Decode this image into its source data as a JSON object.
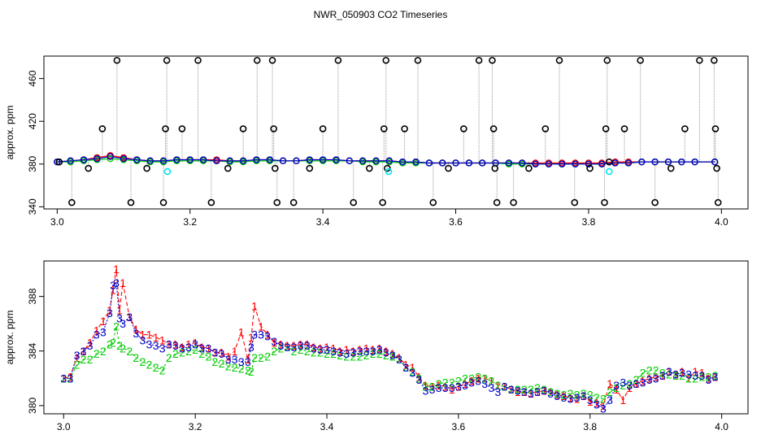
{
  "figure_title": "NWR_050903  CO2 Timeseries",
  "colors": {
    "series1": "#ff0000",
    "series2": "#00cc00",
    "series3": "#0000cc",
    "flagged_outer": "#000000",
    "flagged_line": "#999999",
    "rejected": "#00e5ee",
    "frame": "#000000"
  },
  "chart_data": [
    {
      "type": "line",
      "title": "",
      "xlabel": "",
      "ylabel": "approx. ppm",
      "xlim": [
        2.98,
        4.04
      ],
      "ylim": [
        338,
        481
      ],
      "xticks": [
        3.0,
        3.2,
        3.4,
        3.6,
        3.8,
        4.0
      ],
      "yticks": [
        340,
        380,
        420,
        460
      ],
      "grid": false,
      "legend": "none",
      "x": [
        3.0,
        3.02,
        3.04,
        3.06,
        3.08,
        3.1,
        3.12,
        3.14,
        3.16,
        3.18,
        3.2,
        3.22,
        3.24,
        3.26,
        3.28,
        3.3,
        3.32,
        3.34,
        3.36,
        3.38,
        3.4,
        3.42,
        3.44,
        3.46,
        3.48,
        3.5,
        3.52,
        3.54,
        3.56,
        3.58,
        3.6,
        3.62,
        3.64,
        3.66,
        3.68,
        3.7,
        3.72,
        3.74,
        3.76,
        3.78,
        3.8,
        3.82,
        3.84,
        3.86,
        3.88,
        3.9,
        3.92,
        3.94,
        3.96,
        3.99
      ],
      "series": [
        {
          "values": [
            382,
            383,
            384,
            386,
            388,
            386,
            384,
            383,
            383,
            384,
            384,
            384,
            384,
            383,
            383,
            384,
            384,
            383,
            383,
            384,
            384,
            384,
            383,
            383,
            383,
            383,
            382,
            382,
            381,
            381,
            381,
            381,
            381,
            381,
            381,
            381,
            381,
            381,
            381,
            381,
            381,
            381,
            382,
            382,
            382,
            382,
            382,
            382,
            382,
            382
          ]
        },
        {
          "values": [
            382,
            382,
            383,
            384,
            385,
            384,
            383,
            382,
            382,
            383,
            383,
            383,
            383,
            382,
            382,
            383,
            383,
            383,
            383,
            383,
            383,
            383,
            383,
            382,
            382,
            382,
            381,
            381,
            381,
            381,
            381,
            381,
            381,
            381,
            380,
            380,
            380,
            380,
            380,
            380,
            380,
            380,
            381,
            381,
            382,
            382,
            382,
            382,
            382,
            382
          ]
        },
        {
          "values": [
            382,
            383,
            384,
            385,
            387,
            385,
            384,
            383,
            383,
            384,
            384,
            384,
            383,
            383,
            383,
            384,
            384,
            383,
            383,
            384,
            384,
            384,
            383,
            383,
            383,
            383,
            382,
            382,
            381,
            381,
            381,
            381,
            381,
            381,
            381,
            381,
            380,
            380,
            380,
            380,
            380,
            380,
            381,
            381,
            382,
            382,
            382,
            382,
            382,
            382
          ]
        }
      ],
      "flagged_points": [
        {
          "x": 3.003,
          "y": 382
        },
        {
          "x": 3.022,
          "y": 344
        },
        {
          "x": 3.047,
          "y": 376
        },
        {
          "x": 3.068,
          "y": 413
        },
        {
          "x": 3.09,
          "y": 477
        },
        {
          "x": 3.111,
          "y": 344
        },
        {
          "x": 3.135,
          "y": 376
        },
        {
          "x": 3.16,
          "y": 344
        },
        {
          "x": 3.163,
          "y": 413
        },
        {
          "x": 3.165,
          "y": 477
        },
        {
          "x": 3.188,
          "y": 413
        },
        {
          "x": 3.212,
          "y": 477
        },
        {
          "x": 3.232,
          "y": 344
        },
        {
          "x": 3.257,
          "y": 376
        },
        {
          "x": 3.28,
          "y": 413
        },
        {
          "x": 3.301,
          "y": 477
        },
        {
          "x": 3.324,
          "y": 477
        },
        {
          "x": 3.326,
          "y": 413
        },
        {
          "x": 3.328,
          "y": 376
        },
        {
          "x": 3.331,
          "y": 344
        },
        {
          "x": 3.356,
          "y": 344
        },
        {
          "x": 3.38,
          "y": 376
        },
        {
          "x": 3.4,
          "y": 413
        },
        {
          "x": 3.423,
          "y": 477
        },
        {
          "x": 3.446,
          "y": 344
        },
        {
          "x": 3.47,
          "y": 376
        },
        {
          "x": 3.492,
          "y": 413
        },
        {
          "x": 3.495,
          "y": 477
        },
        {
          "x": 3.497,
          "y": 376
        },
        {
          "x": 3.49,
          "y": 344
        },
        {
          "x": 3.523,
          "y": 413
        },
        {
          "x": 3.543,
          "y": 477
        },
        {
          "x": 3.566,
          "y": 344
        },
        {
          "x": 3.589,
          "y": 376
        },
        {
          "x": 3.612,
          "y": 413
        },
        {
          "x": 3.635,
          "y": 477
        },
        {
          "x": 3.655,
          "y": 477
        },
        {
          "x": 3.657,
          "y": 413
        },
        {
          "x": 3.659,
          "y": 376
        },
        {
          "x": 3.662,
          "y": 344
        },
        {
          "x": 3.687,
          "y": 344
        },
        {
          "x": 3.71,
          "y": 376
        },
        {
          "x": 3.735,
          "y": 413
        },
        {
          "x": 3.756,
          "y": 477
        },
        {
          "x": 3.779,
          "y": 344
        },
        {
          "x": 3.802,
          "y": 376
        },
        {
          "x": 3.824,
          "y": 344
        },
        {
          "x": 3.826,
          "y": 413
        },
        {
          "x": 3.828,
          "y": 477
        },
        {
          "x": 3.831,
          "y": 382
        },
        {
          "x": 3.854,
          "y": 413
        },
        {
          "x": 3.878,
          "y": 477
        },
        {
          "x": 3.9,
          "y": 344
        },
        {
          "x": 3.924,
          "y": 376
        },
        {
          "x": 3.945,
          "y": 413
        },
        {
          "x": 3.967,
          "y": 477
        },
        {
          "x": 3.989,
          "y": 477
        },
        {
          "x": 3.991,
          "y": 413
        },
        {
          "x": 3.993,
          "y": 376
        },
        {
          "x": 3.995,
          "y": 344
        }
      ],
      "rejected_points": [
        {
          "x": 3.166,
          "y": 373
        },
        {
          "x": 3.499,
          "y": 373
        },
        {
          "x": 3.831,
          "y": 373
        }
      ]
    },
    {
      "type": "line",
      "title": "",
      "xlabel": "",
      "ylabel": "approx. ppm",
      "xlim": [
        2.97,
        4.04
      ],
      "ylim": [
        379.4,
        390.6
      ],
      "xticks": [
        3.0,
        3.2,
        3.4,
        3.6,
        3.8,
        4.0
      ],
      "yticks": [
        380,
        384,
        388
      ],
      "grid": false,
      "legend": "none",
      "marker_labels": [
        "1",
        "2",
        "3"
      ],
      "x": [
        3.0,
        3.01,
        3.02,
        3.03,
        3.04,
        3.05,
        3.06,
        3.07,
        3.075,
        3.08,
        3.085,
        3.09,
        3.1,
        3.11,
        3.12,
        3.13,
        3.14,
        3.15,
        3.16,
        3.17,
        3.18,
        3.19,
        3.2,
        3.21,
        3.22,
        3.23,
        3.24,
        3.25,
        3.26,
        3.27,
        3.28,
        3.285,
        3.29,
        3.3,
        3.31,
        3.32,
        3.33,
        3.34,
        3.35,
        3.36,
        3.37,
        3.38,
        3.39,
        3.4,
        3.41,
        3.42,
        3.43,
        3.44,
        3.45,
        3.46,
        3.47,
        3.48,
        3.49,
        3.5,
        3.51,
        3.52,
        3.53,
        3.54,
        3.55,
        3.56,
        3.57,
        3.58,
        3.59,
        3.6,
        3.61,
        3.62,
        3.63,
        3.64,
        3.65,
        3.66,
        3.67,
        3.68,
        3.69,
        3.7,
        3.71,
        3.72,
        3.73,
        3.74,
        3.75,
        3.76,
        3.77,
        3.78,
        3.79,
        3.8,
        3.81,
        3.82,
        3.83,
        3.84,
        3.85,
        3.86,
        3.87,
        3.88,
        3.89,
        3.9,
        3.91,
        3.92,
        3.93,
        3.94,
        3.95,
        3.96,
        3.97,
        3.98,
        3.99
      ],
      "series": [
        {
          "values": [
            382.0,
            382.1,
            383.5,
            384.0,
            384.6,
            385.5,
            386.2,
            387.0,
            388.5,
            390.0,
            387.0,
            389.0,
            386.5,
            385.6,
            385.2,
            385.2,
            385.0,
            384.8,
            384.5,
            384.5,
            384.3,
            384.5,
            384.6,
            384.3,
            384.2,
            383.9,
            383.9,
            383.6,
            384.0,
            385.4,
            383.4,
            385.0,
            387.3,
            385.8,
            385.2,
            384.6,
            384.5,
            384.4,
            384.4,
            384.5,
            384.5,
            384.3,
            384.2,
            384.3,
            384.2,
            384.0,
            384.1,
            384.0,
            384.1,
            384.2,
            384.1,
            384.2,
            384.0,
            383.8,
            383.5,
            383.0,
            382.8,
            382.1,
            381.5,
            381.4,
            381.5,
            381.4,
            381.2,
            381.4,
            381.6,
            381.8,
            382.0,
            382.0,
            381.8,
            381.5,
            381.4,
            381.2,
            381.0,
            381.0,
            380.9,
            381.0,
            381.1,
            381.0,
            380.8,
            380.7,
            380.6,
            380.5,
            380.7,
            380.3,
            380.2,
            380.0,
            381.6,
            381.2,
            380.4,
            381.3,
            381.6,
            381.8,
            382.0,
            382.1,
            382.2,
            382.5,
            382.3,
            382.5,
            382.0,
            382.5,
            382.4,
            382.0,
            382.1
          ]
        },
        {
          "values": [
            382.0,
            382.0,
            383.0,
            383.4,
            383.4,
            383.8,
            384.0,
            384.5,
            384.6,
            385.8,
            384.4,
            384.2,
            384.0,
            383.5,
            383.2,
            383.0,
            382.8,
            382.6,
            383.5,
            383.8,
            383.9,
            384.0,
            384.1,
            383.8,
            383.6,
            383.2,
            383.1,
            382.9,
            382.8,
            382.7,
            382.6,
            382.5,
            383.5,
            383.5,
            383.6,
            384.0,
            384.2,
            384.3,
            384.0,
            384.1,
            384.0,
            383.9,
            383.9,
            383.8,
            383.8,
            383.7,
            383.6,
            383.6,
            383.6,
            383.7,
            383.8,
            383.8,
            383.7,
            383.6,
            383.4,
            382.8,
            382.5,
            382.0,
            381.4,
            381.4,
            381.6,
            381.7,
            381.7,
            381.8,
            382.0,
            382.0,
            382.1,
            382.0,
            381.8,
            381.5,
            381.4,
            381.2,
            381.2,
            381.2,
            381.2,
            381.3,
            381.2,
            381.0,
            380.9,
            380.8,
            380.9,
            380.8,
            380.9,
            380.8,
            380.6,
            380.5,
            381.0,
            381.3,
            381.5,
            381.6,
            381.9,
            382.4,
            382.6,
            382.6,
            382.4,
            382.3,
            382.2,
            382.2,
            382.0,
            382.0,
            382.1,
            382.1,
            382.2
          ]
        },
        {
          "values": [
            382.0,
            382.0,
            383.7,
            384.0,
            384.4,
            385.2,
            385.4,
            386.8,
            388.8,
            389.0,
            386.4,
            386.0,
            386.5,
            385.3,
            384.8,
            384.5,
            384.4,
            384.2,
            384.5,
            384.4,
            384.2,
            384.3,
            384.5,
            384.2,
            384.2,
            383.9,
            383.8,
            383.4,
            383.4,
            383.2,
            383.2,
            384.3,
            385.2,
            385.2,
            385.1,
            384.7,
            384.4,
            384.3,
            384.3,
            384.4,
            384.4,
            384.2,
            384.1,
            384.1,
            384.0,
            383.9,
            383.8,
            383.9,
            384.0,
            384.0,
            384.0,
            384.1,
            383.9,
            383.7,
            383.4,
            382.8,
            382.4,
            381.9,
            381.1,
            381.2,
            381.3,
            381.3,
            381.3,
            381.4,
            381.5,
            381.7,
            381.8,
            381.6,
            381.3,
            381.0,
            381.4,
            381.2,
            381.1,
            381.0,
            380.9,
            381.0,
            381.1,
            380.9,
            380.7,
            380.6,
            380.5,
            380.6,
            380.7,
            380.4,
            380.1,
            379.8,
            380.4,
            381.5,
            381.7,
            381.5,
            381.6,
            381.7,
            381.9,
            382.0,
            382.2,
            382.5,
            382.3,
            382.4,
            382.3,
            382.2,
            382.2,
            381.9,
            382.1
          ]
        }
      ]
    }
  ]
}
